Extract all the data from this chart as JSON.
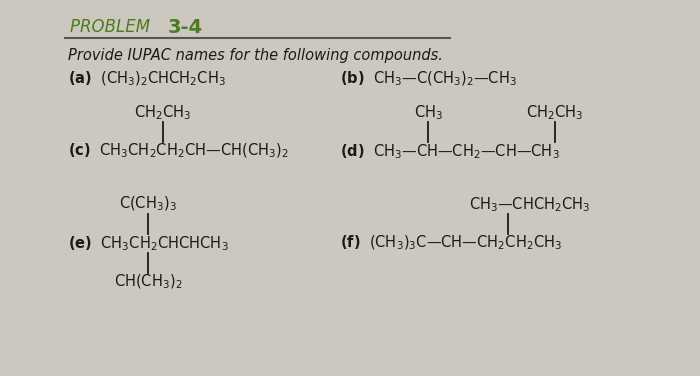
{
  "background_color": "#ccc8bf",
  "font_color": "#1a1a1a",
  "bold_color": "#4a7c20",
  "line_color": "#1a1a1a",
  "title_normal": "PROBLEM ",
  "title_bold": "3-4",
  "instruction": "Provide IUPAC names for the following compounds."
}
